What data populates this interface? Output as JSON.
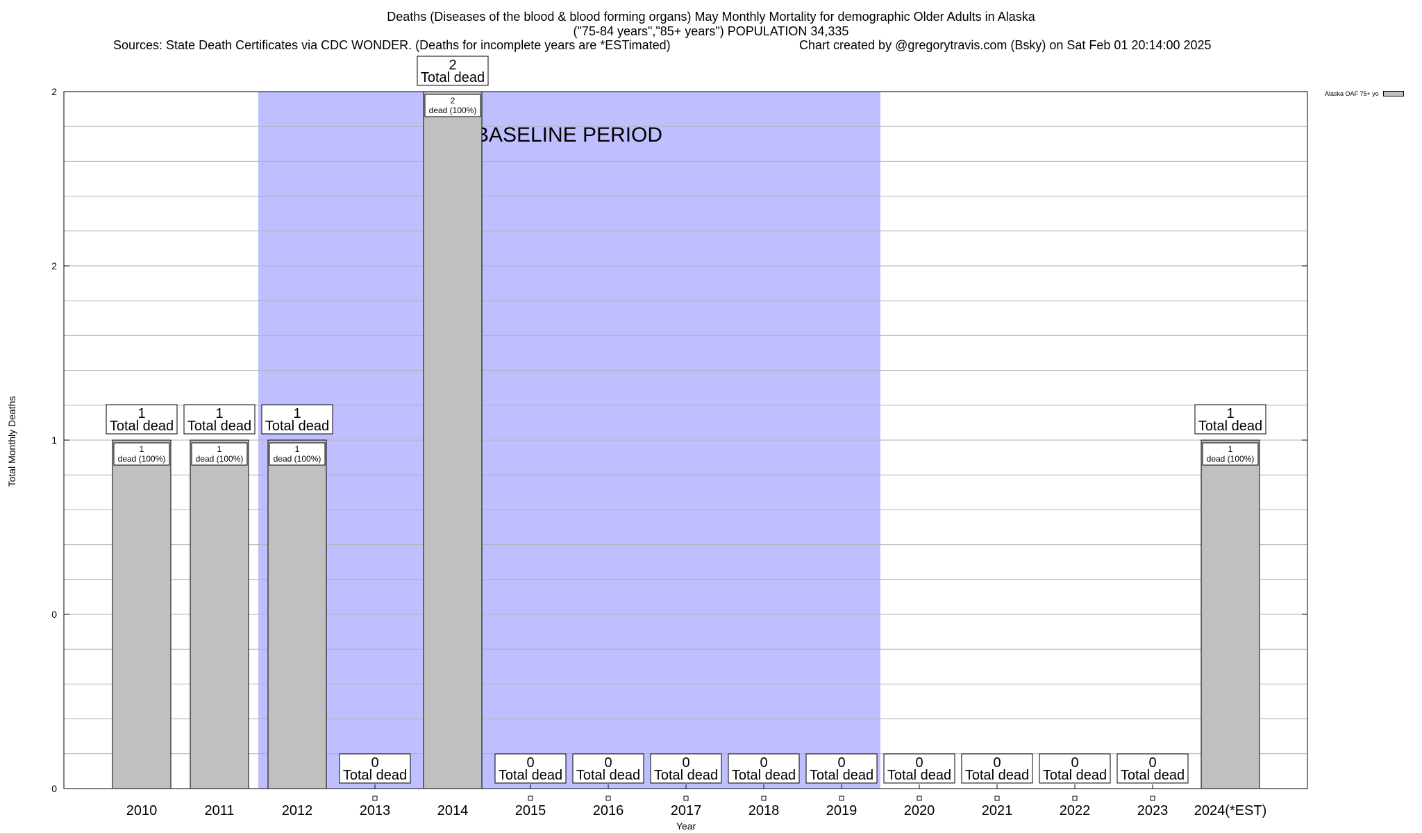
{
  "title_lines": [
    "Deaths (Diseases of the blood & blood forming organs) May Monthly Mortality for demographic Older Adults in Alaska",
    "(\"75-84 years\",\"85+ years\") POPULATION 34,335",
    "Sources: State Death Certificates via CDC WONDER. (Deaths for incomplete years are *ESTimated)"
  ],
  "credit": "Chart created by @gregorytravis.com (Bsky) on Sat Feb 01 20:14:00 2025",
  "legend_label": "Alaska OAF 75+ yo",
  "baseline_label": "BASELINE PERIOD",
  "colors": {
    "bar": "#c0c0c0",
    "baseline": "#bfbfff",
    "grid": "#b0b0b0"
  },
  "chart_data": {
    "type": "bar",
    "title": "Deaths (Diseases of the blood & blood forming organs) May Monthly Mortality for demographic Older Adults in Alaska",
    "xlabel": "Year",
    "ylabel": "Total Monthly Deaths",
    "categories": [
      "2010",
      "2011",
      "2012",
      "2013",
      "2014",
      "2015",
      "2016",
      "2017",
      "2018",
      "2019",
      "2020",
      "2021",
      "2022",
      "2023",
      "2024(*EST)"
    ],
    "series": [
      {
        "name": "Alaska OAF 75+ yo",
        "values": [
          1,
          1,
          1,
          0,
          2,
          0,
          0,
          0,
          0,
          0,
          0,
          0,
          0,
          0,
          1
        ]
      }
    ],
    "ylim": [
      0,
      2
    ],
    "yticks": [
      {
        "value": 0,
        "label": "0"
      },
      {
        "value": 0.5,
        "label": "0"
      },
      {
        "value": 1,
        "label": "1"
      },
      {
        "value": 1.5,
        "label": "2"
      },
      {
        "value": 2,
        "label": "2"
      }
    ],
    "baseline_period": {
      "start": "2012",
      "end": "2019"
    },
    "total_label_suffix": "Total dead",
    "inner_label_suffix": "dead (100%)",
    "grid": true,
    "legend_position": "top-right"
  }
}
